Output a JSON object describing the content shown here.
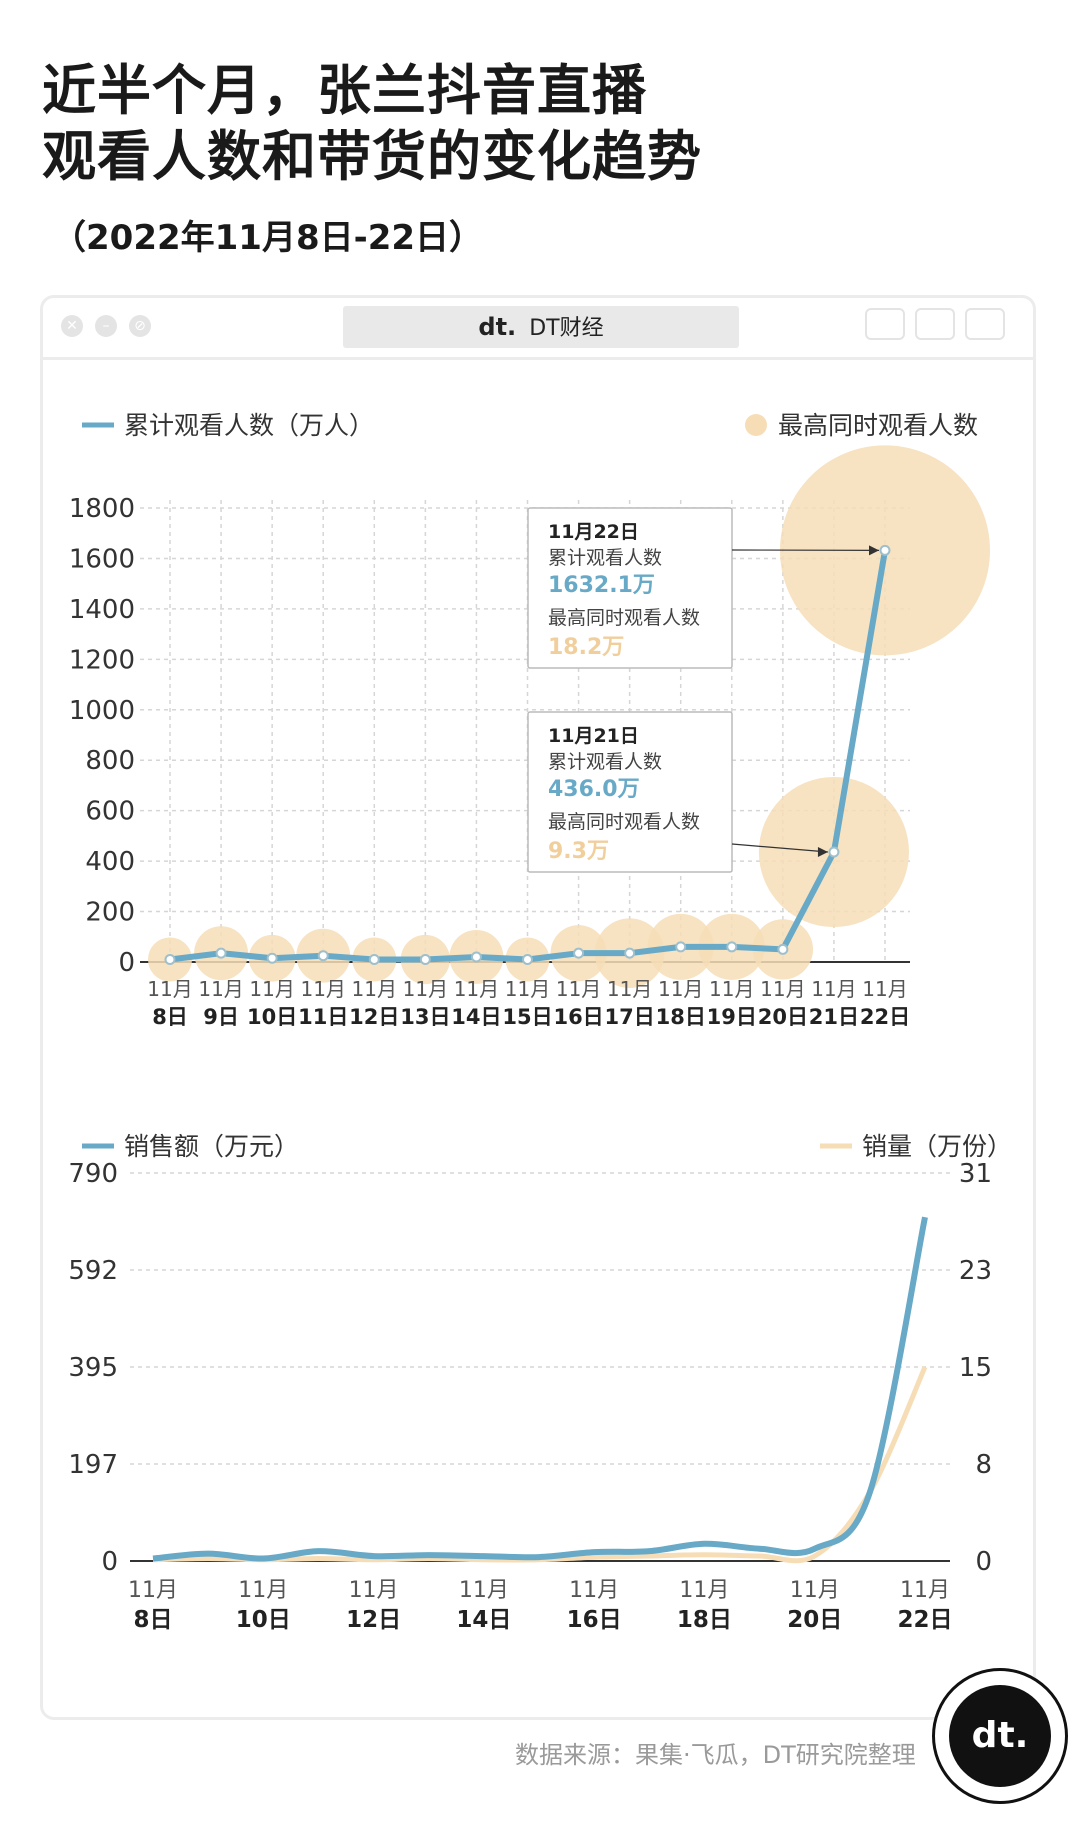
{
  "header": {
    "title_line1": "近半个月，张兰抖音直播",
    "title_line2": "观看人数和带货的变化趋势",
    "subtitle": "（2022年11月8日-22日）"
  },
  "window": {
    "address": "DT财经",
    "logo_text": "dt."
  },
  "colors": {
    "blue": "#67a9c6",
    "peach": "#f6ddb6",
    "grid": "#cfcfcf"
  },
  "chart_data": [
    {
      "type": "line",
      "x_month": "11月",
      "categories": [
        "8日",
        "9日",
        "10日",
        "11日",
        "12日",
        "13日",
        "14日",
        "15日",
        "16日",
        "17日",
        "18日",
        "19日",
        "20日",
        "21日",
        "22日"
      ],
      "series": [
        {
          "name": "累计观看人数（万人）",
          "values": [
            10,
            35,
            15,
            25,
            10,
            10,
            20,
            10,
            35,
            35,
            60,
            60,
            50,
            436.0,
            1632.1
          ]
        },
        {
          "name": "最高同时观看人数",
          "values": [
            0.8,
            1.2,
            0.9,
            1.2,
            0.8,
            1.0,
            1.2,
            0.8,
            1.3,
            2.0,
            1.8,
            1.8,
            1.5,
            9.3,
            18.2
          ]
        }
      ],
      "ylim": [
        0,
        1800
      ],
      "yticks": [
        0,
        200,
        400,
        600,
        800,
        1000,
        1200,
        1400,
        1600,
        1800
      ],
      "grid": true,
      "legend": "top",
      "annotations": [
        {
          "date": "11月22日",
          "label1": "累计观看人数",
          "value1": "1632.1万",
          "label2": "最高同时观看人数",
          "value2": "18.2万"
        },
        {
          "date": "11月21日",
          "label1": "累计观看人数",
          "value1": "436.0万",
          "label2": "最高同时观看人数",
          "value2": "9.3万"
        }
      ]
    },
    {
      "type": "line",
      "x_month": "11月",
      "categories": [
        "8日",
        "9日",
        "10日",
        "11日",
        "12日",
        "13日",
        "14日",
        "15日",
        "16日",
        "17日",
        "18日",
        "19日",
        "20日",
        "21日",
        "22日"
      ],
      "tick_categories": [
        "8日",
        "10日",
        "12日",
        "14日",
        "16日",
        "18日",
        "20日",
        "22日"
      ],
      "series": [
        {
          "name": "销售额（万元）",
          "axis": "left",
          "values": [
            5,
            15,
            5,
            20,
            10,
            12,
            10,
            8,
            18,
            20,
            35,
            25,
            25,
            140,
            700
          ]
        },
        {
          "name": "销量（万份）",
          "axis": "right",
          "values": [
            0.1,
            0.2,
            0.1,
            0.2,
            0.1,
            0.2,
            0.1,
            0.1,
            0.3,
            0.4,
            0.5,
            0.4,
            0.4,
            5.5,
            15.5
          ]
        }
      ],
      "ylim_left": [
        0,
        790
      ],
      "yticks_left": [
        "0",
        "197",
        "395",
        "592",
        "790"
      ],
      "ylim_right": [
        0,
        31
      ],
      "yticks_right": [
        "0",
        "8",
        "15",
        "23",
        "31"
      ],
      "grid": true,
      "legend": "top"
    }
  ],
  "footer": {
    "source": "数据来源：果集·飞瓜，DT研究院整理",
    "badge_text": "dt."
  }
}
